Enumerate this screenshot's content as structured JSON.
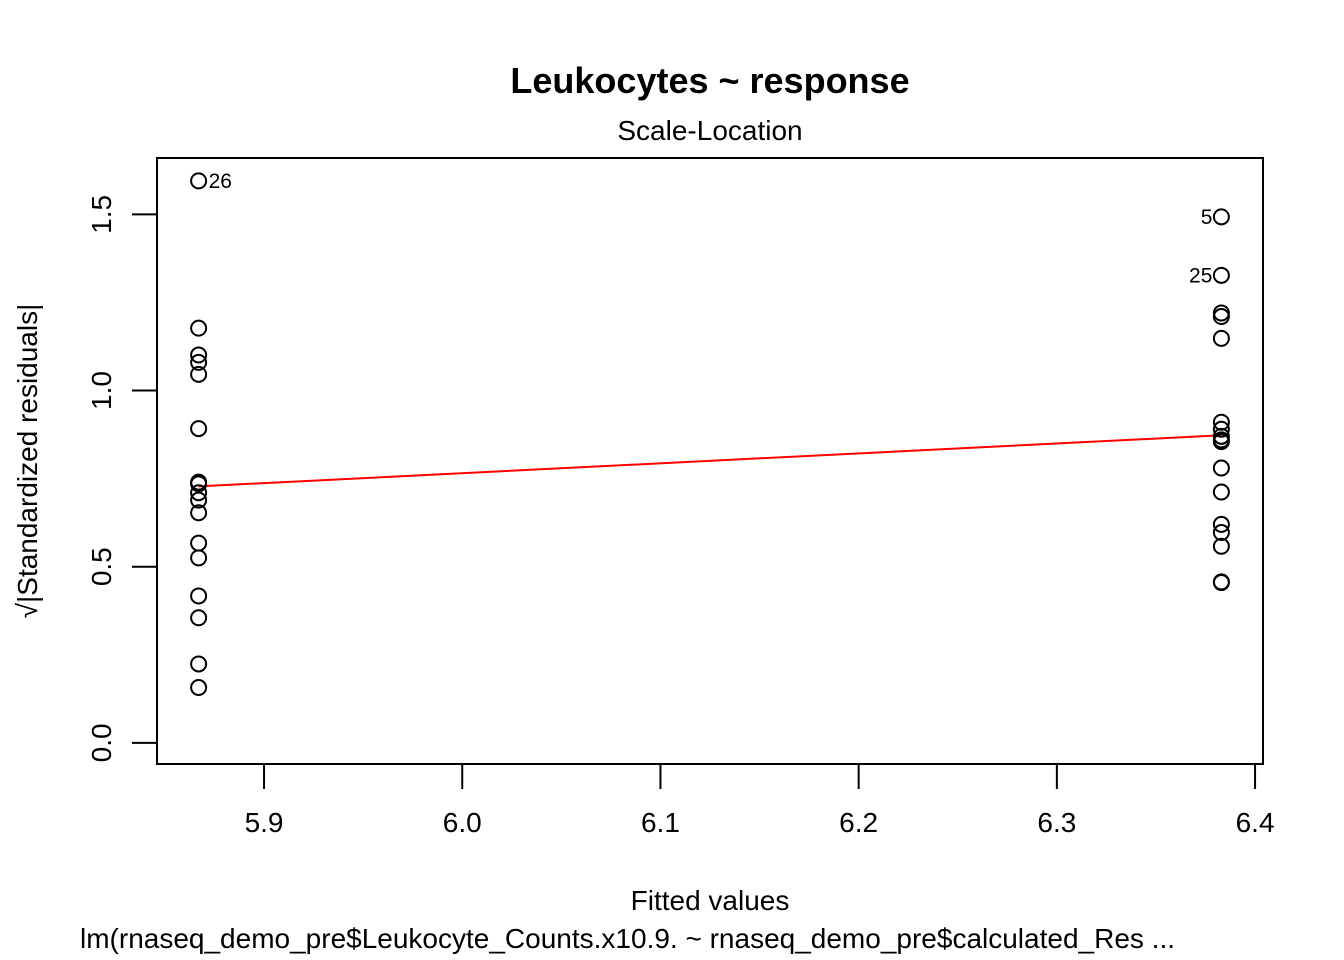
{
  "chart_data": {
    "type": "scatter",
    "title": "Leukocytes ~ response",
    "subtitle": "Scale-Location",
    "xlabel": "Fitted values",
    "ylabel": "√|Standardized residuals|",
    "caption": "lm(rnaseq_demo_pre$Leukocyte_Counts.x10.9. ~ rnaseq_demo_pre$calculated_Res ...",
    "xlim": [
      5.846,
      6.404
    ],
    "ylim": [
      -0.06,
      1.66
    ],
    "xticks": [
      5.9,
      6.0,
      6.1,
      6.2,
      6.3,
      6.4
    ],
    "xtick_labels": [
      "5.9",
      "6.0",
      "6.1",
      "6.2",
      "6.3",
      "6.4"
    ],
    "yticks": [
      0.0,
      0.5,
      1.0,
      1.5
    ],
    "ytick_labels": [
      "0.0",
      "0.5",
      "1.0",
      "1.5"
    ],
    "grid": false,
    "series": [
      {
        "x": [
          5.867,
          5.867,
          5.867,
          5.867,
          5.867,
          5.867,
          5.867,
          5.867,
          5.867,
          5.867,
          5.867,
          5.867,
          5.867,
          5.867,
          5.867,
          5.867,
          5.867,
          6.383,
          6.383,
          6.383,
          6.383,
          6.383,
          6.383,
          6.383,
          6.383,
          6.383,
          6.383,
          6.383,
          6.383,
          6.383,
          6.383,
          6.383,
          6.383,
          6.383
        ],
        "y": [
          1.595,
          1.177,
          1.101,
          1.08,
          1.046,
          0.892,
          0.735,
          0.689,
          0.653,
          0.567,
          0.525,
          0.417,
          0.355,
          0.224,
          0.157,
          0.71,
          0.74,
          1.493,
          1.327,
          1.22,
          1.21,
          1.148,
          0.91,
          0.89,
          0.87,
          0.855,
          0.78,
          0.712,
          0.62,
          0.597,
          0.558,
          0.457,
          0.455,
          0.86
        ]
      }
    ],
    "point_labels": [
      {
        "x": 5.867,
        "y": 1.595,
        "text": "26",
        "side": "right"
      },
      {
        "x": 6.383,
        "y": 1.493,
        "text": "5",
        "side": "left"
      },
      {
        "x": 6.383,
        "y": 1.327,
        "text": "25",
        "side": "left"
      }
    ],
    "smoother": {
      "color": "#ff0000",
      "x": [
        5.867,
        6.383
      ],
      "y": [
        0.728,
        0.873
      ]
    }
  }
}
